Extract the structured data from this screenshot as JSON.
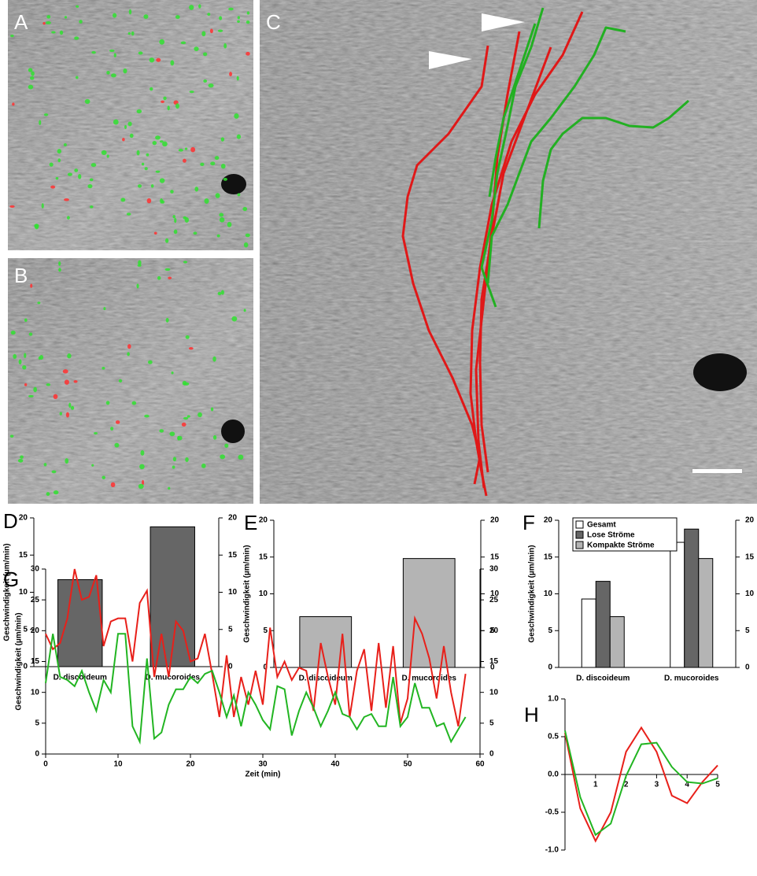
{
  "image_panels": [
    {
      "label": "A"
    },
    {
      "label": "B"
    },
    {
      "label": "C"
    }
  ],
  "chart_data": [
    {
      "type": "bar",
      "panel": "D",
      "y_label": "Geschwindigkeit (µm/min)",
      "categories": [
        "D. discoideum",
        "D. mucoroides"
      ],
      "values": [
        11.7,
        18.8
      ],
      "color": "#666666",
      "ylim": [
        0,
        20
      ],
      "yticks": [
        0,
        5,
        10,
        15,
        20
      ],
      "y2lim": [
        0,
        20
      ],
      "y2ticks": [
        0,
        5,
        10,
        15,
        20
      ]
    },
    {
      "type": "bar",
      "panel": "E",
      "y_label": "Geschwindigkeit (µm/min)",
      "categories": [
        "D. discoideum",
        "D. mucoroides"
      ],
      "values": [
        6.9,
        14.8
      ],
      "color": "#b4b4b4",
      "ylim": [
        0,
        20
      ],
      "yticks": [
        0,
        5,
        10,
        15,
        20
      ],
      "y2lim": [
        0,
        20
      ],
      "y2ticks": [
        0,
        5,
        10,
        15,
        20
      ]
    },
    {
      "type": "grouped-bar",
      "panel": "F",
      "y_label": "Geschwindigkeit (µm/min)",
      "categories": [
        "D. discoideum",
        "D. mucoroides"
      ],
      "series": [
        {
          "name": "Gesamt",
          "color": "#ffffff",
          "values": [
            9.3,
            17
          ]
        },
        {
          "name": "Lose Ströme",
          "color": "#666666",
          "values": [
            11.7,
            18.8
          ]
        },
        {
          "name": "Kompakte Ströme",
          "color": "#b4b4b4",
          "values": [
            6.9,
            14.8
          ]
        }
      ],
      "legend": "upper left",
      "ylim": [
        0,
        20
      ],
      "yticks": [
        0,
        5,
        10,
        15,
        20
      ],
      "y2lim": [
        0,
        20
      ],
      "y2ticks": [
        0,
        5,
        10,
        15,
        20
      ]
    },
    {
      "type": "line",
      "panel": "G",
      "y_label": "Geschwindigkeit (µm/min)",
      "x_label": "Zeit (min)",
      "x": [
        0,
        1,
        2,
        3,
        4,
        5,
        6,
        7,
        8,
        9,
        10,
        11,
        12,
        13,
        14,
        15,
        16,
        17,
        18,
        19,
        20,
        21,
        22,
        23,
        24,
        25,
        26,
        27,
        28,
        29,
        30,
        31,
        32,
        33,
        34,
        35,
        36,
        37,
        38,
        39,
        40,
        41,
        42,
        43,
        44,
        45,
        46,
        47,
        48,
        49,
        50,
        51,
        52,
        53,
        54,
        55,
        56,
        57,
        58
      ],
      "series": [
        {
          "color": "#e8201a",
          "values": [
            19.5,
            17,
            18,
            22,
            30,
            25,
            25.5,
            29,
            17.5,
            21.5,
            22,
            22,
            15,
            24.5,
            26.5,
            12.5,
            19.5,
            12.5,
            21.5,
            20,
            15,
            15.5,
            19.5,
            13,
            6,
            16,
            6,
            12.5,
            8,
            13.5,
            8,
            20.5,
            12.5,
            15,
            12,
            14,
            13.5,
            7,
            18,
            12.5,
            8,
            19.5,
            6,
            13.5,
            17,
            7,
            18,
            7.5,
            17.5,
            5,
            9,
            22,
            19.5,
            15.5,
            9,
            17.5,
            10,
            4.5,
            13
          ]
        },
        {
          "color": "#22b522",
          "values": [
            11.5,
            19.5,
            12.5,
            12,
            11,
            13.5,
            10,
            7,
            12,
            10,
            19.5,
            19.5,
            4.5,
            2,
            15.5,
            2.5,
            3.5,
            8,
            10.5,
            10.5,
            12.5,
            11.5,
            13,
            13.5,
            10,
            6,
            9.5,
            4.5,
            10,
            8,
            5.5,
            4,
            11,
            10.5,
            3,
            7,
            10,
            7.5,
            4.5,
            7,
            10,
            6.5,
            6,
            4,
            6,
            6.5,
            4.5,
            4.5,
            12.5,
            4.5,
            6,
            11.5,
            7.5,
            7.5,
            4.5,
            5,
            2,
            4,
            6
          ]
        }
      ],
      "xlim": [
        0,
        60
      ],
      "xticks": [
        0,
        10,
        20,
        30,
        40,
        50,
        60
      ],
      "ylim": [
        0,
        30
      ],
      "yticks": [
        0,
        5,
        10,
        15,
        20,
        25,
        30
      ],
      "y2lim": [
        0,
        30
      ],
      "y2ticks": [
        0,
        5,
        10,
        15,
        20,
        25,
        30
      ]
    },
    {
      "type": "line",
      "panel": "H",
      "x": [
        0,
        0.5,
        1,
        1.5,
        2,
        2.5,
        3,
        3.5,
        4,
        4.5,
        5
      ],
      "series": [
        {
          "color": "#e8201a",
          "values": [
            0.55,
            -0.45,
            -0.88,
            -0.5,
            0.3,
            0.62,
            0.3,
            -0.28,
            -0.38,
            -0.1,
            0.12
          ]
        },
        {
          "color": "#22b522",
          "values": [
            0.58,
            -0.3,
            -0.8,
            -0.65,
            -0.02,
            0.4,
            0.42,
            0.1,
            -0.1,
            -0.12,
            -0.05
          ]
        }
      ],
      "xlim": [
        0,
        5
      ],
      "xticks": [
        1,
        2,
        3,
        4,
        5
      ],
      "x_axis_at_zero": true,
      "ylim": [
        -1,
        1
      ],
      "yticks": [
        {
          "value": -1,
          "label": "-1.0"
        },
        -0.5,
        {
          "value": 0,
          "label": "0.0"
        },
        0.5,
        {
          "value": 1,
          "label": "1.0"
        }
      ]
    }
  ]
}
